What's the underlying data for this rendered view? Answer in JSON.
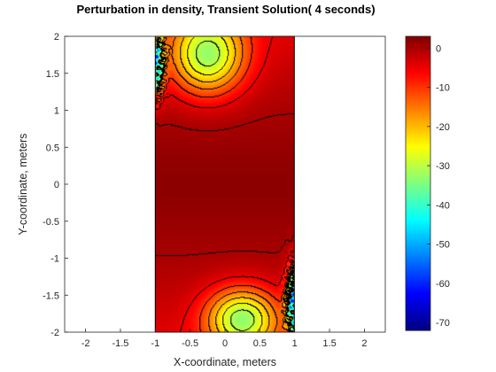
{
  "chart_data": {
    "type": "heatmap",
    "subtype": "filled-contour",
    "title": "Perturbation in density, Transient Solution( 4 seconds)",
    "xlabel": "X-coordinate, meters",
    "ylabel": "Y-coordinate, meters",
    "xlim": [
      -2.3,
      2.3
    ],
    "ylim": [
      -2,
      2
    ],
    "x_ticks": [
      "-2",
      "-1.5",
      "-1",
      "-0.5",
      "0",
      "0.5",
      "1",
      "1.5",
      "2"
    ],
    "y_ticks": [
      "2",
      "1.5",
      "1",
      "0.5",
      "0",
      "-0.5",
      "-1",
      "-1.5",
      "-2"
    ],
    "field_domain": {
      "x": [
        -1,
        1
      ],
      "y": [
        -2,
        2
      ]
    },
    "field_summary": {
      "center_value": 2,
      "top_lobe": {
        "x": -0.25,
        "y": 1.75,
        "min_value": -34
      },
      "bottom_lobe": {
        "x": 0.25,
        "y": -1.82,
        "min_value": -34
      },
      "corner_spikes": {
        "top_left": -70,
        "bottom_right": -70
      },
      "contour_levels": [
        -30,
        -25,
        -20,
        -15,
        -10,
        -5,
        0
      ]
    },
    "colorbar": {
      "colormap": "jet",
      "range": [
        -72,
        3
      ],
      "ticks": [
        "0",
        "-10",
        "-20",
        "-30",
        "-40",
        "-50",
        "-60",
        "-70"
      ]
    },
    "grid": false,
    "legend": "none"
  }
}
